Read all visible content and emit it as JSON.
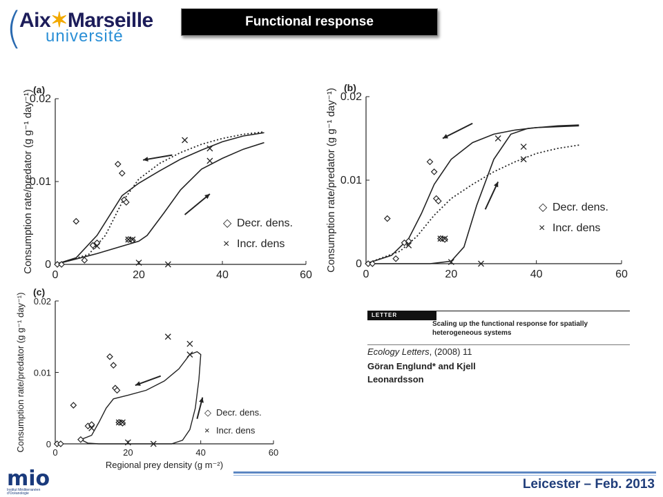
{
  "header": {
    "logo_line1_a": "Aix",
    "logo_star": "✶",
    "logo_line1_b": "Marseille",
    "logo_line2": "université",
    "title": "Functional response"
  },
  "footer": {
    "text": "Leicester – Feb. 2013",
    "mio_logo": "mio",
    "mio_sub": "Institut Méditerranéen d'Océanologie"
  },
  "paper": {
    "tag": "LETTER",
    "title": "Scaling up the functional response for spatially heterogeneous systems",
    "journal_italic": "Ecology Letters",
    "journal_rest": ", (2008) 11",
    "authors": "Göran Englund* and Kjell Leonardsson"
  },
  "colors": {
    "title_bg": "#000000",
    "footer_line": "#5b86c2",
    "footer_text": "#1f3d7a",
    "logo_blue": "#2a8fd6",
    "logo_dark": "#1d1d5a"
  },
  "chart_data": [
    {
      "panel": "(a)",
      "type": "scatter",
      "ylabel": "Consumption rate/predator (g g⁻¹ day⁻¹)",
      "xlim": [
        0,
        60
      ],
      "ylim": [
        0,
        0.02
      ],
      "xticks": [
        "0",
        "20",
        "40",
        "60"
      ],
      "yticks": [
        "0",
        "0.01",
        "0.02"
      ],
      "legend": {
        "placement": "right",
        "entries": [
          {
            "marker": "◇",
            "label": "Decr. dens."
          },
          {
            "marker": "×",
            "label": "Incr. dens"
          }
        ]
      },
      "decr_points": [
        [
          0.5,
          0
        ],
        [
          1.5,
          0
        ],
        [
          5,
          0.0052
        ],
        [
          7,
          0.0005
        ],
        [
          9,
          0.0023
        ],
        [
          10,
          0.0026
        ],
        [
          15,
          0.0121
        ],
        [
          16,
          0.011
        ],
        [
          16.5,
          0.0078
        ],
        [
          17,
          0.0075
        ],
        [
          17.5,
          0.003
        ],
        [
          18.5,
          0.0029
        ]
      ],
      "incr_points": [
        [
          10,
          0.0022
        ],
        [
          17.5,
          0.003
        ],
        [
          18.5,
          0.003
        ],
        [
          20,
          0.0002
        ],
        [
          27,
          0
        ],
        [
          31,
          0.015
        ],
        [
          37,
          0.014
        ],
        [
          37,
          0.0125
        ]
      ],
      "curve_decr": [
        [
          0,
          0
        ],
        [
          5,
          0.0008
        ],
        [
          10,
          0.0035
        ],
        [
          16,
          0.0083
        ],
        [
          20,
          0.0098
        ],
        [
          25,
          0.0113
        ],
        [
          30,
          0.0127
        ],
        [
          35,
          0.0138
        ],
        [
          40,
          0.0148
        ],
        [
          45,
          0.0155
        ],
        [
          50,
          0.0159
        ]
      ],
      "curve_incr": [
        [
          0,
          0
        ],
        [
          10,
          0.0013
        ],
        [
          20,
          0.0028
        ],
        [
          22,
          0.0035
        ],
        [
          26,
          0.0062
        ],
        [
          30,
          0.009
        ],
        [
          35,
          0.0115
        ],
        [
          40,
          0.0128
        ],
        [
          45,
          0.0139
        ],
        [
          50,
          0.0147
        ]
      ],
      "curve_dotted": [
        [
          0,
          0
        ],
        [
          8,
          0.0012
        ],
        [
          12,
          0.0035
        ],
        [
          16,
          0.0075
        ],
        [
          20,
          0.0103
        ],
        [
          25,
          0.0122
        ],
        [
          30,
          0.0135
        ],
        [
          35,
          0.0145
        ],
        [
          40,
          0.0152
        ],
        [
          45,
          0.0157
        ],
        [
          50,
          0.016
        ]
      ],
      "arrows": [
        {
          "from": [
            28,
            0.0132
          ],
          "to": [
            21,
            0.0126
          ]
        },
        {
          "from": [
            31,
            0.006
          ],
          "to": [
            37,
            0.0085
          ]
        }
      ]
    },
    {
      "panel": "(b)",
      "type": "scatter",
      "ylabel": "Consumption rate/predator (g g⁻¹ day⁻¹)",
      "xlim": [
        0,
        60
      ],
      "ylim": [
        0,
        0.02
      ],
      "xticks": [
        "0",
        "20",
        "40",
        "60"
      ],
      "yticks": [
        "0",
        "0.01",
        "0.02"
      ],
      "legend": {
        "placement": "right",
        "entries": [
          {
            "marker": "◇",
            "label": "Decr. dens."
          },
          {
            "marker": "×",
            "label": "Incr. dens"
          }
        ]
      },
      "decr_points": [
        [
          0.5,
          0
        ],
        [
          1.5,
          0
        ],
        [
          5,
          0.0054
        ],
        [
          7,
          0.0006
        ],
        [
          9,
          0.0025
        ],
        [
          10,
          0.0027
        ],
        [
          15,
          0.0122
        ],
        [
          16,
          0.011
        ],
        [
          16.5,
          0.0078
        ],
        [
          17,
          0.0075
        ],
        [
          17.5,
          0.003
        ],
        [
          18.5,
          0.0029
        ]
      ],
      "incr_points": [
        [
          10,
          0.0022
        ],
        [
          17.5,
          0.003
        ],
        [
          18.5,
          0.003
        ],
        [
          20,
          0.0002
        ],
        [
          27,
          0
        ],
        [
          31,
          0.015
        ],
        [
          37,
          0.014
        ],
        [
          37,
          0.0125
        ]
      ],
      "curve_decr": [
        [
          0,
          0
        ],
        [
          6,
          0.001
        ],
        [
          10,
          0.003
        ],
        [
          13,
          0.006
        ],
        [
          16,
          0.0095
        ],
        [
          20,
          0.0125
        ],
        [
          25,
          0.0145
        ],
        [
          30,
          0.0155
        ],
        [
          35,
          0.016
        ],
        [
          40,
          0.0163
        ],
        [
          50,
          0.0165
        ]
      ],
      "curve_incr": [
        [
          0,
          0
        ],
        [
          15,
          0
        ],
        [
          20,
          0.0003
        ],
        [
          23,
          0.002
        ],
        [
          26,
          0.007
        ],
        [
          30,
          0.0125
        ],
        [
          34,
          0.0155
        ],
        [
          38,
          0.0162
        ],
        [
          45,
          0.0165
        ],
        [
          50,
          0.0166
        ]
      ],
      "curve_dotted": [
        [
          0,
          0
        ],
        [
          8,
          0.0015
        ],
        [
          12,
          0.0033
        ],
        [
          16,
          0.0058
        ],
        [
          20,
          0.0078
        ],
        [
          25,
          0.0095
        ],
        [
          30,
          0.011
        ],
        [
          35,
          0.0122
        ],
        [
          40,
          0.0132
        ],
        [
          45,
          0.0138
        ],
        [
          50,
          0.0142
        ]
      ],
      "arrows": [
        {
          "from": [
            25,
            0.0168
          ],
          "to": [
            18,
            0.015
          ]
        },
        {
          "from": [
            28,
            0.0065
          ],
          "to": [
            31,
            0.0098
          ]
        }
      ]
    },
    {
      "panel": "(c)",
      "type": "scatter",
      "xlabel": "Regional prey density (g m⁻²)",
      "ylabel": "Consumption rate/predator (g g⁻¹ day⁻¹)",
      "xlim": [
        0,
        60
      ],
      "ylim": [
        0,
        0.02
      ],
      "xticks": [
        "0",
        "20",
        "40",
        "60"
      ],
      "yticks": [
        "0",
        "0.01",
        "0.02"
      ],
      "legend": {
        "placement": "right",
        "entries": [
          {
            "marker": "◇",
            "label": "Decr. dens."
          },
          {
            "marker": "×",
            "label": "Incr. dens"
          }
        ]
      },
      "decr_points": [
        [
          0.5,
          0
        ],
        [
          1.5,
          0
        ],
        [
          5,
          0.0054
        ],
        [
          7,
          0.0006
        ],
        [
          9,
          0.0025
        ],
        [
          10,
          0.0027
        ],
        [
          15,
          0.0122
        ],
        [
          16,
          0.011
        ],
        [
          16.5,
          0.0078
        ],
        [
          17,
          0.0075
        ],
        [
          17.5,
          0.003
        ],
        [
          18.5,
          0.0029
        ]
      ],
      "incr_points": [
        [
          10,
          0.0022
        ],
        [
          17.5,
          0.003
        ],
        [
          18.5,
          0.003
        ],
        [
          20,
          0.0002
        ],
        [
          27,
          0
        ],
        [
          31,
          0.015
        ],
        [
          37,
          0.014
        ],
        [
          37,
          0.0125
        ]
      ],
      "loop_curve": [
        [
          7,
          0.0006
        ],
        [
          10,
          0.0012
        ],
        [
          12,
          0.003
        ],
        [
          14,
          0.005
        ],
        [
          16,
          0.0063
        ],
        [
          20,
          0.0068
        ],
        [
          25,
          0.0075
        ],
        [
          30,
          0.0088
        ],
        [
          34,
          0.0105
        ],
        [
          37,
          0.0125
        ],
        [
          39,
          0.0129
        ],
        [
          40,
          0.0125
        ],
        [
          39.5,
          0.009
        ],
        [
          38.5,
          0.005
        ],
        [
          37,
          0.002
        ],
        [
          35,
          0.0005
        ],
        [
          32,
          0
        ],
        [
          20,
          0
        ],
        [
          12,
          0
        ],
        [
          9,
          0.0001
        ],
        [
          7,
          0.0006
        ]
      ],
      "arrows": [
        {
          "from": [
            29,
            0.0095
          ],
          "to": [
            22,
            0.0082
          ]
        },
        {
          "from": [
            39,
            0.0035
          ],
          "to": [
            40.5,
            0.0065
          ]
        }
      ]
    }
  ]
}
